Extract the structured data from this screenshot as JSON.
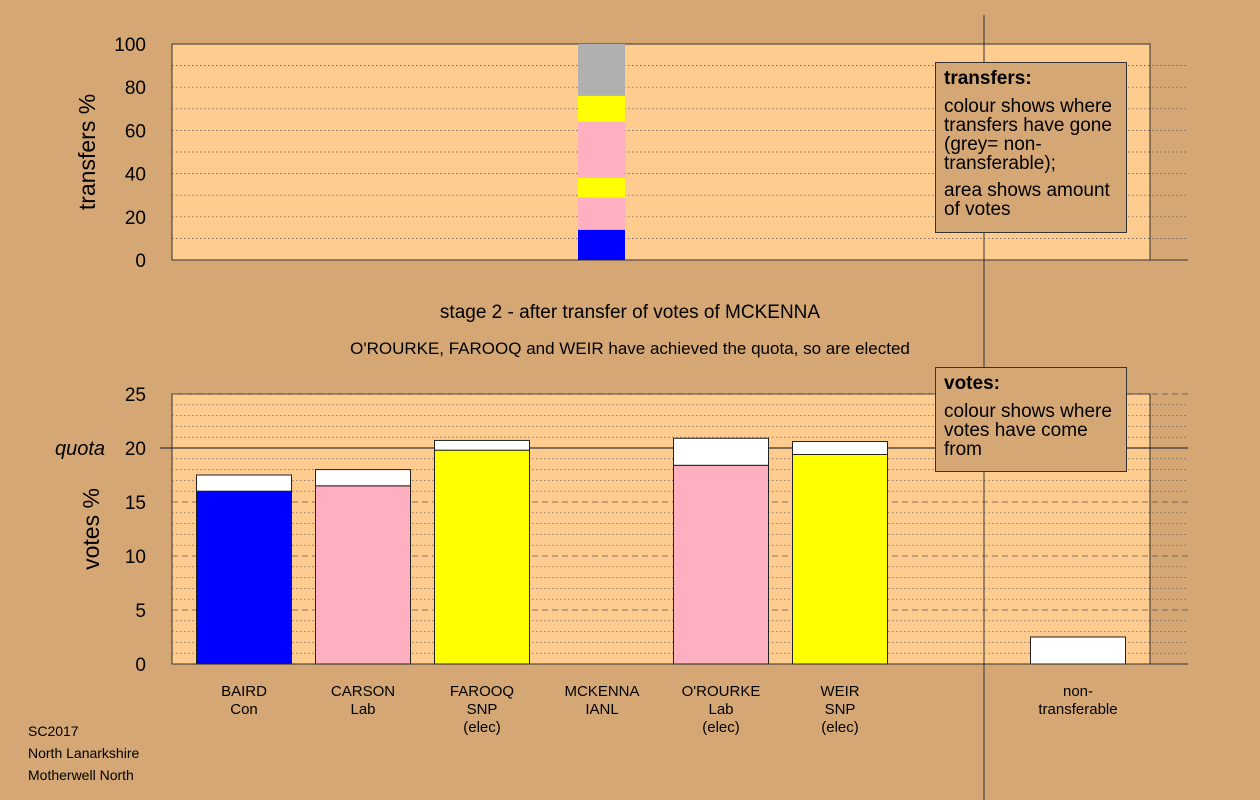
{
  "transfers_chart": {
    "ylabel": "transfers %",
    "ylim": [
      0,
      100
    ],
    "yticks": [
      "0",
      "20",
      "40",
      "60",
      "80",
      "100"
    ],
    "segments": [
      {
        "from": 0,
        "to": 14,
        "color": "#0000ff"
      },
      {
        "from": 14,
        "to": 29,
        "color": "#ffb0c0"
      },
      {
        "from": 29,
        "to": 38,
        "color": "#ffff00"
      },
      {
        "from": 38,
        "to": 64,
        "color": "#ffb0c0"
      },
      {
        "from": 64,
        "to": 76,
        "color": "#ffff00"
      },
      {
        "from": 76,
        "to": 100,
        "color": "#b0b0b0"
      }
    ],
    "legend": {
      "title": "transfers:",
      "text1": "colour shows where transfers have gone (grey= non-transferable);",
      "text2": "area shows amount of votes"
    }
  },
  "stage_title": "stage 2 - after transfer of votes of MCKENNA",
  "stage_subtitle": "O'ROURKE, FAROOQ and WEIR have achieved the quota, so are elected",
  "chart_data": {
    "type": "bar",
    "ylabel": "votes %",
    "ylim": [
      0,
      25
    ],
    "yticks": [
      "0",
      "5",
      "10",
      "15",
      "20",
      "25"
    ],
    "quota": {
      "label": "quota",
      "value": 20
    },
    "categories": [
      "BAIRD\nCon",
      "CARSON\nLab",
      "FAROOQ\nSNP\n(elec)",
      "MCKENNA\nIANL",
      "O'ROURKE\nLab\n(elec)",
      "WEIR\nSNP\n(elec)",
      "non-\ntransferable"
    ],
    "series": [
      {
        "values": [
          16.0,
          16.5,
          19.8,
          0,
          18.4,
          19.4,
          0
        ],
        "colors": [
          "#0000ff",
          "#ffb0c0",
          "#ffff00",
          "#ffb0c0",
          "#ffb0c0",
          "#ffff00",
          "#ffffff"
        ]
      },
      {
        "values": [
          1.5,
          1.5,
          0.9,
          0,
          2.5,
          1.2,
          2.5
        ],
        "colors": [
          "#ffffff",
          "#ffffff",
          "#ffffff",
          "#ffffff",
          "#ffffff",
          "#ffffff",
          "#ffffff"
        ]
      }
    ],
    "legend": {
      "title": "votes:",
      "text1": "colour shows where votes have come from"
    }
  },
  "footer": {
    "line1": "SC2017",
    "line2": "North Lanarkshire",
    "line3": "Motherwell North"
  },
  "colors": {
    "background": "#d4a775",
    "plot_area": "#ffcc90"
  }
}
